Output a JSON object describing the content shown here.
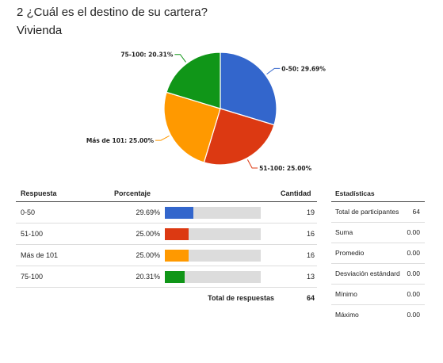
{
  "question": {
    "title": "2 ¿Cuál es el destino de su cartera?",
    "subtitle": "Vivienda"
  },
  "chart_data": {
    "type": "pie",
    "title": "",
    "slices": [
      {
        "label": "0-50",
        "value": 29.69,
        "color": "#3366cc",
        "text": "0-50: 29.69%"
      },
      {
        "label": "51-100",
        "value": 25.0,
        "color": "#dc3912",
        "text": "51-100: 25.00%"
      },
      {
        "label": "Más de 101",
        "value": 25.0,
        "color": "#ff9900",
        "text": "Más de 101: 25.00%"
      },
      {
        "label": "75-100",
        "value": 20.31,
        "color": "#109618",
        "text": "75-100: 20.31%"
      }
    ]
  },
  "table": {
    "headers": {
      "respuesta": "Respuesta",
      "porcentaje": "Porcentaje",
      "cantidad": "Cantidad"
    },
    "rows": [
      {
        "label": "0-50",
        "pct": "29.69%",
        "fraction": 0.2969,
        "count": "19",
        "color": "#3366cc"
      },
      {
        "label": "51-100",
        "pct": "25.00%",
        "fraction": 0.25,
        "count": "16",
        "color": "#dc3912"
      },
      {
        "label": "Más de 101",
        "pct": "25.00%",
        "fraction": 0.25,
        "count": "16",
        "color": "#ff9900"
      },
      {
        "label": "75-100",
        "pct": "20.31%",
        "fraction": 0.2031,
        "count": "13",
        "color": "#109618"
      }
    ],
    "total_label": "Total de respuestas",
    "total_value": "64"
  },
  "stats": {
    "header": "Estadísticas",
    "rows": [
      {
        "label": "Total de participantes",
        "value": "64"
      },
      {
        "label": "Suma",
        "value": "0.00"
      },
      {
        "label": "Promedio",
        "value": "0.00"
      },
      {
        "label": "Desviación estándard",
        "value": "0.00"
      },
      {
        "label": "Mínimo",
        "value": "0.00"
      },
      {
        "label": "Máximo",
        "value": "0.00"
      }
    ]
  }
}
